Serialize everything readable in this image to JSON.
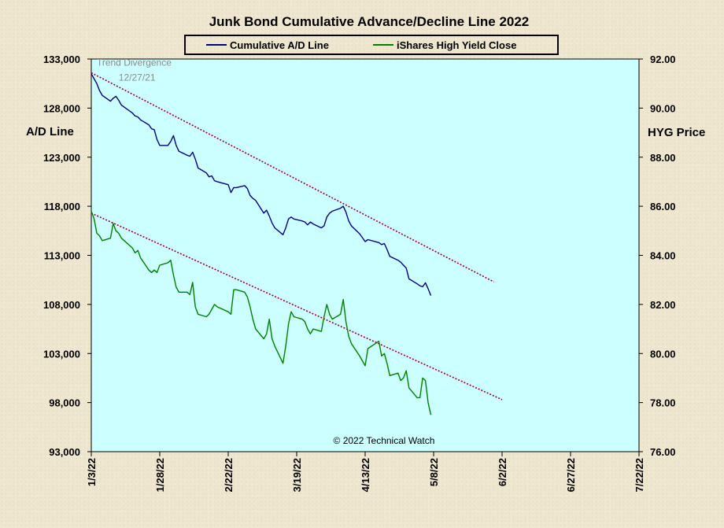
{
  "chart_data": {
    "type": "line",
    "title": "Junk Bond Cumulative  Advance/Decline  Line 2022",
    "ylabel_left": "A/D Line",
    "ylabel_right": "HYG Price",
    "ylim_left": [
      93000,
      133000
    ],
    "ylim_right": [
      76,
      92
    ],
    "yticks_left": [
      "133,000",
      "128,000",
      "123,000",
      "118,000",
      "113,000",
      "108,000",
      "103,000",
      "98,000",
      "93,000"
    ],
    "yticks_right": [
      "92.00",
      "90.00",
      "88.00",
      "86.00",
      "84.00",
      "82.00",
      "80.00",
      "78.00",
      "76.00"
    ],
    "xticks": [
      "1/3/22",
      "1/28/22",
      "2/22/22",
      "3/19/22",
      "4/13/22",
      "5/8/22",
      "6/2/22",
      "6/27/22",
      "7/22/22"
    ],
    "xlim": [
      "2022-01-03",
      "2022-07-22"
    ],
    "plot_background": "#ccffff",
    "legend": {
      "placement": "top-center"
    },
    "annotations": [
      {
        "text": "Trend Divergence",
        "x": "2022-01-05",
        "y": 132300,
        "axis": "left"
      },
      {
        "text": "12/27/21",
        "x": "2022-01-13",
        "y": 130800,
        "axis": "left"
      }
    ],
    "copyright": "© 2022 Technical Watch",
    "series": [
      {
        "name": "Cumulative A/D Line",
        "color": "#000080",
        "axis": "left",
        "points": [
          [
            "2022-01-03",
            131500
          ],
          [
            "2022-01-04",
            131000
          ],
          [
            "2022-01-05",
            130500
          ],
          [
            "2022-01-06",
            129800
          ],
          [
            "2022-01-07",
            129300
          ],
          [
            "2022-01-10",
            128700
          ],
          [
            "2022-01-11",
            129000
          ],
          [
            "2022-01-12",
            129200
          ],
          [
            "2022-01-13",
            128800
          ],
          [
            "2022-01-14",
            128300
          ],
          [
            "2022-01-18",
            127500
          ],
          [
            "2022-01-19",
            127200
          ],
          [
            "2022-01-20",
            127100
          ],
          [
            "2022-01-21",
            126800
          ],
          [
            "2022-01-24",
            126300
          ],
          [
            "2022-01-25",
            125900
          ],
          [
            "2022-01-26",
            125800
          ],
          [
            "2022-01-27",
            124800
          ],
          [
            "2022-01-28",
            124200
          ],
          [
            "2022-01-31",
            124200
          ],
          [
            "2022-02-01",
            124600
          ],
          [
            "2022-02-02",
            125200
          ],
          [
            "2022-02-03",
            124200
          ],
          [
            "2022-02-04",
            123600
          ],
          [
            "2022-02-07",
            123200
          ],
          [
            "2022-02-08",
            123100
          ],
          [
            "2022-02-09",
            123500
          ],
          [
            "2022-02-10",
            122800
          ],
          [
            "2022-02-11",
            121900
          ],
          [
            "2022-02-14",
            121400
          ],
          [
            "2022-02-15",
            121000
          ],
          [
            "2022-02-16",
            121100
          ],
          [
            "2022-02-17",
            120600
          ],
          [
            "2022-02-18",
            120500
          ],
          [
            "2022-02-22",
            120200
          ],
          [
            "2022-02-23",
            119400
          ],
          [
            "2022-02-24",
            119900
          ],
          [
            "2022-02-25",
            119900
          ],
          [
            "2022-02-28",
            120100
          ],
          [
            "2022-03-01",
            119800
          ],
          [
            "2022-03-02",
            119100
          ],
          [
            "2022-03-03",
            118800
          ],
          [
            "2022-03-04",
            118600
          ],
          [
            "2022-03-07",
            117300
          ],
          [
            "2022-03-08",
            117600
          ],
          [
            "2022-03-09",
            117000
          ],
          [
            "2022-03-10",
            116300
          ],
          [
            "2022-03-11",
            115800
          ],
          [
            "2022-03-14",
            115100
          ],
          [
            "2022-03-15",
            115800
          ],
          [
            "2022-03-16",
            116700
          ],
          [
            "2022-03-17",
            116900
          ],
          [
            "2022-03-18",
            116700
          ],
          [
            "2022-03-21",
            116500
          ],
          [
            "2022-03-22",
            116400
          ],
          [
            "2022-03-23",
            116100
          ],
          [
            "2022-03-24",
            116400
          ],
          [
            "2022-03-25",
            116200
          ],
          [
            "2022-03-28",
            115800
          ],
          [
            "2022-03-29",
            116000
          ],
          [
            "2022-03-30",
            116900
          ],
          [
            "2022-03-31",
            117300
          ],
          [
            "2022-04-01",
            117500
          ],
          [
            "2022-04-04",
            117800
          ],
          [
            "2022-04-05",
            118000
          ],
          [
            "2022-04-06",
            117400
          ],
          [
            "2022-04-07",
            116500
          ],
          [
            "2022-04-08",
            116000
          ],
          [
            "2022-04-11",
            115200
          ],
          [
            "2022-04-12",
            114800
          ],
          [
            "2022-04-13",
            114400
          ],
          [
            "2022-04-14",
            114600
          ],
          [
            "2022-04-18",
            114300
          ],
          [
            "2022-04-19",
            114100
          ],
          [
            "2022-04-20",
            114200
          ],
          [
            "2022-04-21",
            113600
          ],
          [
            "2022-04-22",
            112900
          ],
          [
            "2022-04-25",
            112500
          ],
          [
            "2022-04-26",
            112300
          ],
          [
            "2022-04-27",
            112000
          ],
          [
            "2022-04-28",
            111700
          ],
          [
            "2022-04-29",
            110600
          ],
          [
            "2022-05-02",
            110100
          ],
          [
            "2022-05-03",
            109900
          ],
          [
            "2022-05-04",
            109800
          ],
          [
            "2022-05-05",
            110200
          ],
          [
            "2022-05-06",
            109600
          ],
          [
            "2022-05-07",
            108900
          ]
        ]
      },
      {
        "name": "iShares High Yield Close",
        "color": "#008000",
        "axis": "right",
        "points": [
          [
            "2022-01-03",
            85.8
          ],
          [
            "2022-01-04",
            85.5
          ],
          [
            "2022-01-05",
            84.9
          ],
          [
            "2022-01-06",
            84.8
          ],
          [
            "2022-01-07",
            84.6
          ],
          [
            "2022-01-10",
            84.7
          ],
          [
            "2022-01-11",
            85.3
          ],
          [
            "2022-01-12",
            85.0
          ],
          [
            "2022-01-13",
            84.9
          ],
          [
            "2022-01-14",
            84.7
          ],
          [
            "2022-01-18",
            84.3
          ],
          [
            "2022-01-19",
            84.1
          ],
          [
            "2022-01-20",
            84.2
          ],
          [
            "2022-01-21",
            83.9
          ],
          [
            "2022-01-24",
            83.4
          ],
          [
            "2022-01-25",
            83.3
          ],
          [
            "2022-01-26",
            83.4
          ],
          [
            "2022-01-27",
            83.3
          ],
          [
            "2022-01-28",
            83.6
          ],
          [
            "2022-01-31",
            83.7
          ],
          [
            "2022-02-01",
            83.8
          ],
          [
            "2022-02-02",
            83.2
          ],
          [
            "2022-02-03",
            82.7
          ],
          [
            "2022-02-04",
            82.5
          ],
          [
            "2022-02-07",
            82.5
          ],
          [
            "2022-02-08",
            82.4
          ],
          [
            "2022-02-09",
            82.9
          ],
          [
            "2022-02-10",
            81.9
          ],
          [
            "2022-02-11",
            81.6
          ],
          [
            "2022-02-14",
            81.5
          ],
          [
            "2022-02-15",
            81.6
          ],
          [
            "2022-02-16",
            81.8
          ],
          [
            "2022-02-17",
            82.0
          ],
          [
            "2022-02-18",
            81.9
          ],
          [
            "2022-02-22",
            81.7
          ],
          [
            "2022-02-23",
            81.6
          ],
          [
            "2022-02-24",
            82.6
          ],
          [
            "2022-02-25",
            82.6
          ],
          [
            "2022-02-28",
            82.5
          ],
          [
            "2022-03-01",
            82.3
          ],
          [
            "2022-03-02",
            81.9
          ],
          [
            "2022-03-03",
            81.4
          ],
          [
            "2022-03-04",
            81.0
          ],
          [
            "2022-03-07",
            80.6
          ],
          [
            "2022-03-08",
            80.8
          ],
          [
            "2022-03-09",
            81.4
          ],
          [
            "2022-03-10",
            80.6
          ],
          [
            "2022-03-11",
            80.3
          ],
          [
            "2022-03-14",
            79.6
          ],
          [
            "2022-03-15",
            80.3
          ],
          [
            "2022-03-16",
            81.2
          ],
          [
            "2022-03-17",
            81.7
          ],
          [
            "2022-03-18",
            81.5
          ],
          [
            "2022-03-21",
            81.4
          ],
          [
            "2022-03-22",
            81.3
          ],
          [
            "2022-03-23",
            81.0
          ],
          [
            "2022-03-24",
            80.8
          ],
          [
            "2022-03-25",
            81.0
          ],
          [
            "2022-03-28",
            80.9
          ],
          [
            "2022-03-29",
            81.5
          ],
          [
            "2022-03-30",
            82.0
          ],
          [
            "2022-03-31",
            81.6
          ],
          [
            "2022-04-01",
            81.4
          ],
          [
            "2022-04-04",
            81.6
          ],
          [
            "2022-04-05",
            82.2
          ],
          [
            "2022-04-06",
            81.3
          ],
          [
            "2022-04-07",
            80.7
          ],
          [
            "2022-04-08",
            80.4
          ],
          [
            "2022-04-11",
            79.9
          ],
          [
            "2022-04-12",
            79.7
          ],
          [
            "2022-04-13",
            79.5
          ],
          [
            "2022-04-14",
            80.2
          ],
          [
            "2022-04-18",
            80.5
          ],
          [
            "2022-04-19",
            79.9
          ],
          [
            "2022-04-20",
            80.0
          ],
          [
            "2022-04-21",
            79.6
          ],
          [
            "2022-04-22",
            79.1
          ],
          [
            "2022-04-25",
            79.2
          ],
          [
            "2022-04-26",
            78.9
          ],
          [
            "2022-04-27",
            79.0
          ],
          [
            "2022-04-28",
            79.3
          ],
          [
            "2022-04-29",
            78.6
          ],
          [
            "2022-05-02",
            78.2
          ],
          [
            "2022-05-03",
            78.2
          ],
          [
            "2022-05-04",
            79.0
          ],
          [
            "2022-05-05",
            78.9
          ],
          [
            "2022-05-06",
            78.0
          ],
          [
            "2022-05-07",
            77.5
          ]
        ]
      }
    ],
    "trendlines": [
      {
        "axis": "left",
        "color": "#990033",
        "style": "dotted",
        "from": [
          "2022-01-03",
          131600
        ],
        "to": [
          "2022-05-30",
          110300
        ]
      },
      {
        "axis": "left",
        "color": "#990033",
        "style": "dotted",
        "from": [
          "2022-01-03",
          117300
        ],
        "to": [
          "2022-06-02",
          98300
        ]
      }
    ]
  }
}
